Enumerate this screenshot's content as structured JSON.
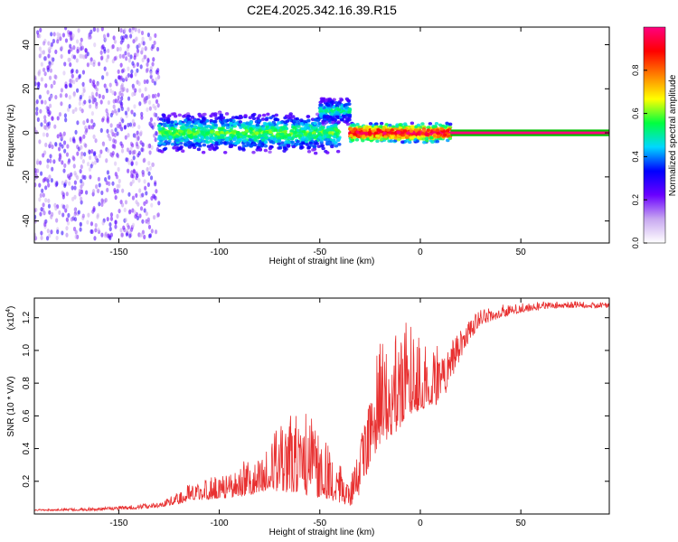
{
  "title": "C2E4.2025.342.16.39.R15",
  "chart_data": [
    {
      "type": "heatmap",
      "name": "spectrogram",
      "xlabel": "Height of straight line (km)",
      "ylabel": "Frequency (Hz)",
      "xlim": [
        -192,
        94
      ],
      "ylim": [
        -50,
        48
      ],
      "xticks": [
        -150,
        -100,
        -50,
        0,
        50
      ],
      "yticks": [
        -40,
        -20,
        0,
        20,
        40
      ],
      "grid": false,
      "colorbar": {
        "label": "Normalized spectral amplitude",
        "range": [
          0.0,
          1.0
        ],
        "ticks": [
          0.0,
          0.2,
          0.4,
          0.6,
          0.8
        ],
        "tick_labels": [
          "0.0",
          "0.2",
          "0.4",
          "0.6",
          "0.8"
        ],
        "colormap": [
          "#ffffff",
          "#c8a8f0",
          "#6a00ff",
          "#0000ff",
          "#00d8ff",
          "#00ff40",
          "#ffff00",
          "#ff8000",
          "#ff0000",
          "#ff0080"
        ]
      },
      "bands": [
        {
          "x_range": [
            -192,
            -130
          ],
          "freq_spread": 48,
          "amplitude": 0.25,
          "description_key": "broadband"
        },
        {
          "x_range": [
            -130,
            -40
          ],
          "center_freq": 0,
          "freq_width": 6,
          "amplitude": 0.45
        },
        {
          "x_range": [
            -50,
            -35
          ],
          "center_freq": 10,
          "freq_width": 4,
          "amplitude": 0.4
        },
        {
          "x_range": [
            -35,
            15
          ],
          "center_freq": 0,
          "freq_width": 3,
          "amplitude": 0.75
        },
        {
          "x_range": [
            15,
            94
          ],
          "center_freq": 0,
          "freq_width": 1,
          "amplitude": 1.0
        }
      ]
    },
    {
      "type": "line",
      "name": "snr",
      "xlabel": "Height of straight line (km)",
      "ylabel": "SNR (10 * V/V)",
      "multiplier_label": "(x10",
      "multiplier_exp": "4",
      "xlim": [
        -192,
        94
      ],
      "ylim": [
        0.0,
        1.32
      ],
      "xticks": [
        -150,
        -100,
        -50,
        0,
        50
      ],
      "yticks": [
        0.2,
        0.4,
        0.6,
        0.8,
        1.0,
        1.2
      ],
      "ytick_labels": [
        "0.2",
        "0.4",
        "0.6",
        "0.8",
        "1.0",
        "1.2"
      ],
      "color": "#e83030",
      "envelope": {
        "x": [
          -192,
          -160,
          -140,
          -130,
          -120,
          -115,
          -110,
          -100,
          -90,
          -80,
          -75,
          -70,
          -65,
          -60,
          -55,
          -50,
          -45,
          -40,
          -35,
          -30,
          -25,
          -20,
          -15,
          -10,
          -5,
          0,
          5,
          10,
          15,
          20,
          25,
          30,
          40,
          50,
          60,
          70,
          80,
          94
        ],
        "base": [
          0.02,
          0.02,
          0.03,
          0.04,
          0.06,
          0.08,
          0.08,
          0.09,
          0.1,
          0.12,
          0.12,
          0.13,
          0.12,
          0.12,
          0.1,
          0.09,
          0.08,
          0.06,
          0.04,
          0.1,
          0.3,
          0.4,
          0.45,
          0.5,
          0.6,
          0.62,
          0.66,
          0.65,
          0.8,
          0.95,
          1.07,
          1.15,
          1.2,
          1.23,
          1.25,
          1.26,
          1.26,
          1.26
        ],
        "peak": [
          0.03,
          0.04,
          0.06,
          0.08,
          0.14,
          0.22,
          0.2,
          0.24,
          0.3,
          0.4,
          0.52,
          0.58,
          0.6,
          0.62,
          0.62,
          0.5,
          0.4,
          0.3,
          0.2,
          0.5,
          0.8,
          1.05,
          1.2,
          1.2,
          1.15,
          1.12,
          1.1,
          1.0,
          1.05,
          1.12,
          1.2,
          1.25,
          1.28,
          1.29,
          1.3,
          1.3,
          1.3,
          1.29
        ]
      }
    }
  ]
}
